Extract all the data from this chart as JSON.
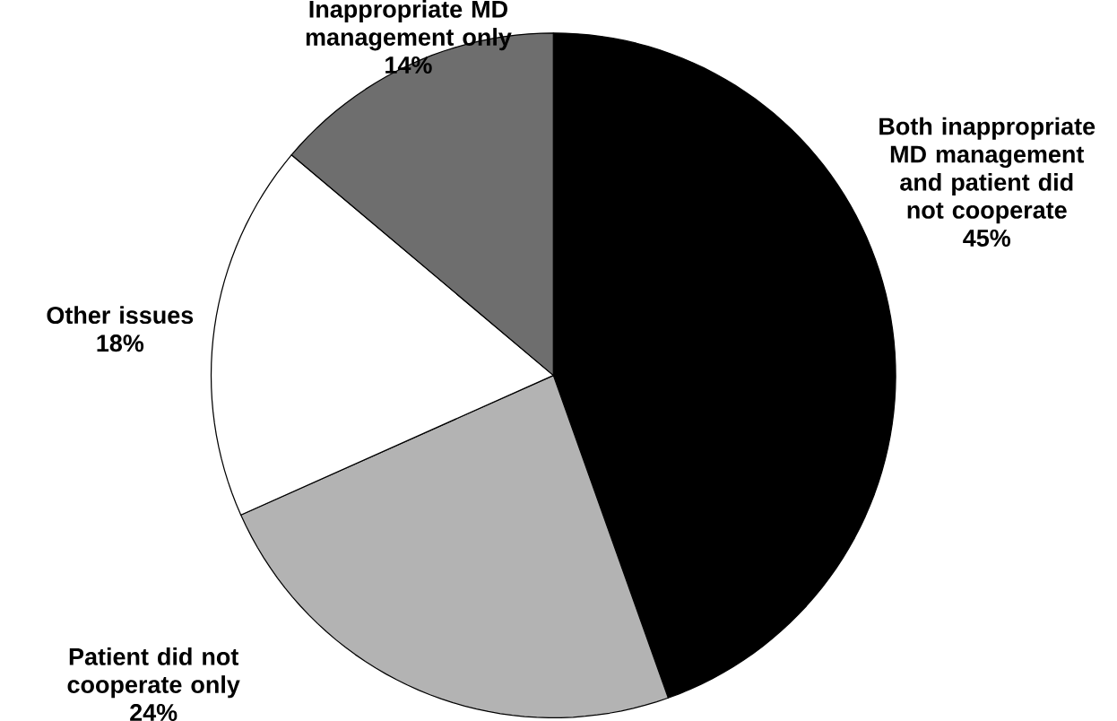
{
  "chart_data": {
    "type": "pie",
    "categories": [
      "Both inappropriate MD management and patient did not cooperate",
      "Patient did not cooperate only",
      "Other issues",
      "Inappropriate MD management only"
    ],
    "values": [
      45,
      24,
      18,
      14
    ],
    "colors": [
      "#000000",
      "#b3b3b3",
      "#ffffff",
      "#6e6e6e"
    ],
    "value_labels": [
      "45%",
      "24%",
      "18%",
      "14%"
    ]
  }
}
